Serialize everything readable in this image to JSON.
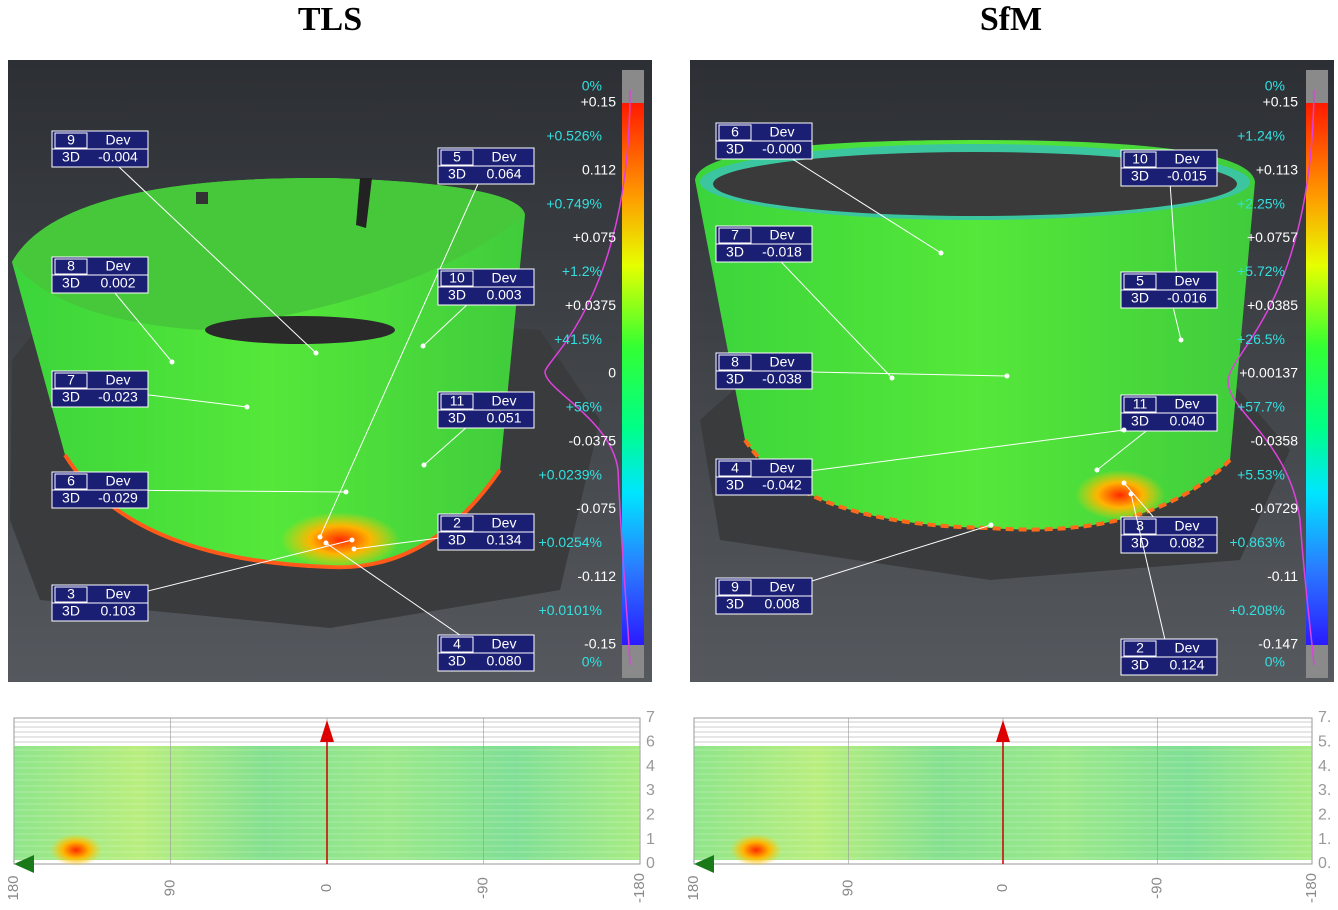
{
  "panels": [
    {
      "title": "TLS",
      "callouts": [
        {
          "id": "9",
          "head": "Dev",
          "kind": "3D",
          "dev": "-0.004"
        },
        {
          "id": "5",
          "head": "Dev",
          "kind": "3D",
          "dev": "0.064"
        },
        {
          "id": "8",
          "head": "Dev",
          "kind": "3D",
          "dev": "0.002"
        },
        {
          "id": "10",
          "head": "Dev",
          "kind": "3D",
          "dev": "0.003"
        },
        {
          "id": "7",
          "head": "Dev",
          "kind": "3D",
          "dev": "-0.023"
        },
        {
          "id": "11",
          "head": "Dev",
          "kind": "3D",
          "dev": "0.051"
        },
        {
          "id": "6",
          "head": "Dev",
          "kind": "3D",
          "dev": "-0.029"
        },
        {
          "id": "2",
          "head": "Dev",
          "kind": "3D",
          "dev": "0.134"
        },
        {
          "id": "3",
          "head": "Dev",
          "kind": "3D",
          "dev": "0.103"
        },
        {
          "id": "4",
          "head": "Dev",
          "kind": "3D",
          "dev": "0.080"
        }
      ],
      "scale_values": [
        "+0.15",
        "0.112",
        "+0.075",
        "+0.0375",
        "0",
        "-0.0375",
        "-0.075",
        "-0.112",
        "-0.15"
      ],
      "scale_percents": [
        "0%",
        "+0.526%",
        "+0.749%",
        "+1.2%",
        "+41.5%",
        "+56%",
        "+0.0239%",
        "+0.0254%",
        "+0.0101%",
        "0%"
      ],
      "strip_yticks": [
        "7",
        "6",
        "4",
        "3",
        "2",
        "1",
        "0"
      ],
      "strip_xticks": [
        "180",
        "90",
        "0",
        "-90",
        "-180"
      ]
    },
    {
      "title": "SfM",
      "callouts": [
        {
          "id": "6",
          "head": "Dev",
          "kind": "3D",
          "dev": "-0.000"
        },
        {
          "id": "10",
          "head": "Dev",
          "kind": "3D",
          "dev": "-0.015"
        },
        {
          "id": "7",
          "head": "Dev",
          "kind": "3D",
          "dev": "-0.018"
        },
        {
          "id": "5",
          "head": "Dev",
          "kind": "3D",
          "dev": "-0.016"
        },
        {
          "id": "8",
          "head": "Dev",
          "kind": "3D",
          "dev": "-0.038"
        },
        {
          "id": "11",
          "head": "Dev",
          "kind": "3D",
          "dev": "0.040"
        },
        {
          "id": "4",
          "head": "Dev",
          "kind": "3D",
          "dev": "-0.042"
        },
        {
          "id": "3",
          "head": "Dev",
          "kind": "3D",
          "dev": "0.082"
        },
        {
          "id": "9",
          "head": "Dev",
          "kind": "3D",
          "dev": "0.008"
        },
        {
          "id": "2",
          "head": "Dev",
          "kind": "3D",
          "dev": "0.124"
        }
      ],
      "scale_values": [
        "+0.15",
        "+0.113",
        "+0.0757",
        "+0.0385",
        "+0.00137",
        "-0.0358",
        "-0.0729",
        "-0.11",
        "-0.147"
      ],
      "scale_percents": [
        "0%",
        "+1.24%",
        "+2.25%",
        "+5.72%",
        "+26.5%",
        "+57.7%",
        "+5.53%",
        "+0.863%",
        "+0.208%",
        "0%"
      ],
      "strip_yticks": [
        "7.",
        "5.",
        "4.",
        "3.",
        "2.",
        "1.",
        "0."
      ],
      "strip_xticks": [
        "180",
        "90",
        "0",
        "-90",
        "-180"
      ]
    }
  ]
}
